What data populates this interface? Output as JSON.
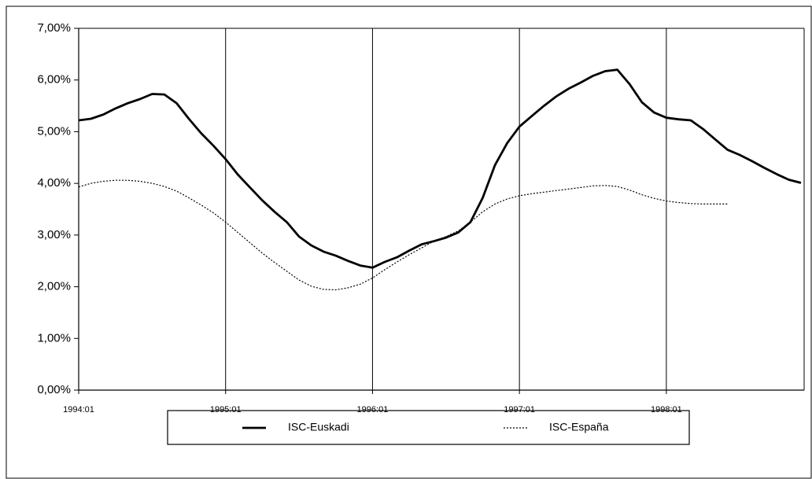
{
  "chart_data": {
    "type": "line",
    "categories": [
      "1994:01",
      null,
      null,
      null,
      null,
      null,
      null,
      null,
      null,
      null,
      null,
      null,
      "1995:01",
      null,
      null,
      null,
      null,
      null,
      null,
      null,
      null,
      null,
      null,
      null,
      "1996:01",
      null,
      null,
      null,
      null,
      null,
      null,
      null,
      null,
      null,
      null,
      null,
      "1997:01",
      null,
      null,
      null,
      null,
      null,
      null,
      null,
      null,
      null,
      null,
      null,
      "1998:01",
      null,
      null,
      null,
      null,
      null,
      null,
      null,
      null,
      null,
      null,
      null
    ],
    "series": [
      {
        "name": "ISC-Euskadi",
        "color": "#000000",
        "style": "solid",
        "values": [
          5.22,
          5.25,
          5.33,
          5.45,
          5.55,
          5.63,
          5.73,
          5.72,
          5.55,
          5.25,
          4.97,
          4.73,
          4.47,
          4.17,
          3.92,
          3.67,
          3.45,
          3.25,
          2.97,
          2.8,
          2.68,
          2.6,
          2.5,
          2.41,
          2.37,
          2.48,
          2.57,
          2.7,
          2.82,
          2.88,
          2.95,
          3.05,
          3.25,
          3.72,
          4.35,
          4.78,
          5.1,
          5.3,
          5.5,
          5.68,
          5.83,
          5.95,
          6.08,
          6.17,
          6.2,
          5.92,
          5.57,
          5.37,
          5.27,
          5.24,
          5.22,
          5.05,
          4.85,
          4.65,
          4.55,
          4.43,
          4.3,
          4.18,
          4.07,
          4.01
        ]
      },
      {
        "name": "ISC-España",
        "color": "#000000",
        "style": "dotted",
        "values": [
          3.93,
          4.0,
          4.04,
          4.06,
          4.06,
          4.04,
          4.0,
          3.94,
          3.85,
          3.72,
          3.58,
          3.43,
          3.25,
          3.05,
          2.85,
          2.65,
          2.47,
          2.3,
          2.13,
          2.01,
          1.95,
          1.94,
          1.98,
          2.05,
          2.17,
          2.33,
          2.48,
          2.62,
          2.75,
          2.88,
          2.97,
          3.08,
          3.25,
          3.45,
          3.6,
          3.7,
          3.76,
          3.8,
          3.83,
          3.86,
          3.89,
          3.92,
          3.95,
          3.96,
          3.94,
          3.87,
          3.78,
          3.71,
          3.66,
          3.63,
          3.61,
          3.6,
          3.6,
          3.6,
          null,
          null,
          null,
          null,
          null,
          null
        ]
      }
    ],
    "ylim": [
      0,
      7
    ],
    "yticks": [
      {
        "value": 0,
        "label": "0,00%"
      },
      {
        "value": 1,
        "label": "1,00%"
      },
      {
        "value": 2,
        "label": "2,00%"
      },
      {
        "value": 3,
        "label": "3,00%"
      },
      {
        "value": 4,
        "label": "4,00%"
      },
      {
        "value": 5,
        "label": "5,00%"
      },
      {
        "value": 6,
        "label": "6,00%"
      },
      {
        "value": 7,
        "label": "7,00%"
      }
    ],
    "x_grid": true,
    "legend": "bottom"
  }
}
